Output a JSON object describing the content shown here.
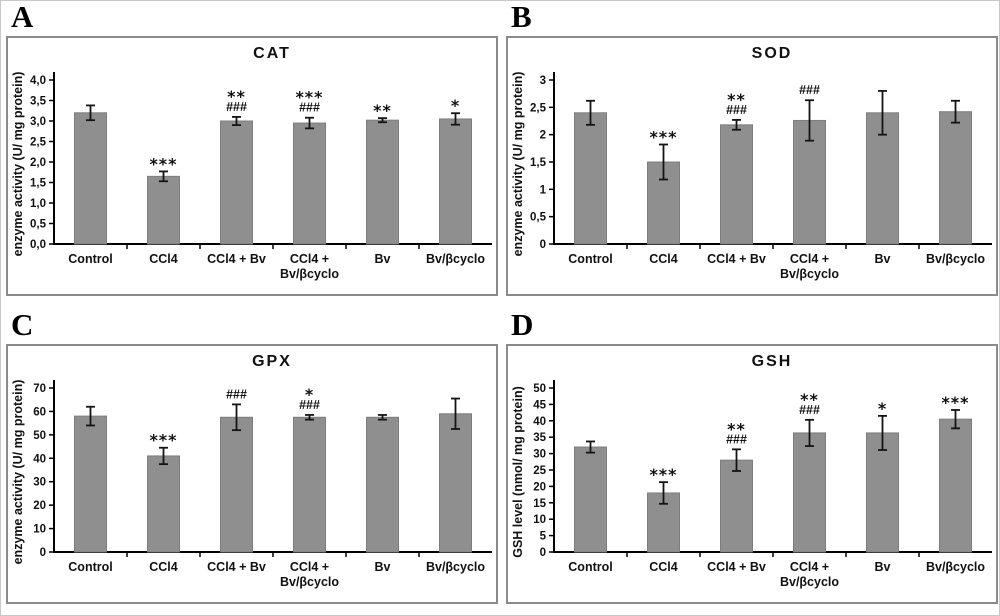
{
  "colors": {
    "bar": "#8f8f8f",
    "bar_edge": "#7d7d7d",
    "axis": "#000000",
    "error_bar": "#141414",
    "panel_border": "#8a8a8a"
  },
  "chart_data": [
    {
      "type": "bar",
      "panel_label": "A",
      "title": "CAT",
      "ylabel": "enzyme activity (U/ mg protein)",
      "xlabel": "",
      "ylim": [
        0,
        4
      ],
      "grid": false,
      "legend": false,
      "ytick_labels": [
        "0,0",
        "0,5",
        "1,0",
        "1,5",
        "2,0",
        "2,5",
        "3,0",
        "3,5",
        "4,0"
      ],
      "categories": [
        "Control",
        "CCl4",
        "CCl4 + Bv",
        "CCl4 +\nBv/βcyclo",
        "Bv",
        "Bv/βcyclo"
      ],
      "values": [
        3.2,
        1.65,
        3.0,
        2.95,
        3.02,
        3.05
      ],
      "errors": [
        0.18,
        0.12,
        0.1,
        0.13,
        0.05,
        0.14
      ],
      "sig_stars": [
        "",
        "***",
        "**",
        "***",
        "**",
        "*"
      ],
      "sig_hashes": [
        "",
        "",
        "###",
        "###",
        "",
        ""
      ]
    },
    {
      "type": "bar",
      "panel_label": "B",
      "title": "SOD",
      "ylabel": "enzyme activity (U/ mg protein)",
      "xlabel": "",
      "ylim": [
        0,
        3
      ],
      "grid": false,
      "legend": false,
      "ytick_labels": [
        "0",
        "0,5",
        "1",
        "1,5",
        "2",
        "2,5",
        "3"
      ],
      "categories": [
        "Control",
        "CCl4",
        "CCl4 + Bv",
        "CCl4 +\nBv/βcyclo",
        "Bv",
        "Bv/βcyclo"
      ],
      "values": [
        2.4,
        1.5,
        2.18,
        2.26,
        2.4,
        2.42
      ],
      "errors": [
        0.22,
        0.32,
        0.09,
        0.37,
        0.4,
        0.2
      ],
      "sig_stars": [
        "",
        "***",
        "**",
        "",
        "",
        ""
      ],
      "sig_hashes": [
        "",
        "",
        "###",
        "###",
        "",
        ""
      ]
    },
    {
      "type": "bar",
      "panel_label": "C",
      "title": "GPX",
      "ylabel": "enzyme activity (U/ mg protein)",
      "xlabel": "",
      "ylim": [
        0,
        70
      ],
      "grid": false,
      "legend": false,
      "ytick_labels": [
        "0",
        "10",
        "20",
        "30",
        "40",
        "50",
        "60",
        "70"
      ],
      "categories": [
        "Control",
        "CCl4",
        "CCl4 + Bv",
        "CCl4 +\nBv/βcyclo",
        "Bv",
        "Bv/βcyclo"
      ],
      "values": [
        58,
        41,
        57.5,
        57.5,
        57.5,
        59
      ],
      "errors": [
        4,
        3.5,
        5.5,
        1,
        1,
        6.5
      ],
      "sig_stars": [
        "",
        "***",
        "",
        "*",
        "",
        ""
      ],
      "sig_hashes": [
        "",
        "",
        "###",
        "###",
        "",
        ""
      ]
    },
    {
      "type": "bar",
      "panel_label": "D",
      "title": "GSH",
      "ylabel": "GSH level (nmol/ mg protein)",
      "xlabel": "",
      "ylim": [
        0,
        50
      ],
      "grid": false,
      "legend": false,
      "ytick_labels": [
        "0",
        "5",
        "10",
        "15",
        "20",
        "25",
        "30",
        "35",
        "40",
        "45",
        "50"
      ],
      "categories": [
        "Control",
        "CCl4",
        "CCl4 + Bv",
        "CCl4 +\nBv/βcyclo",
        "Bv",
        "Bv/βcyclo"
      ],
      "values": [
        32,
        18,
        28,
        36.3,
        36.3,
        40.5
      ],
      "errors": [
        1.7,
        3.3,
        3.3,
        4.0,
        5.2,
        2.8
      ],
      "sig_stars": [
        "",
        "***",
        "**",
        "**",
        "*",
        "***"
      ],
      "sig_hashes": [
        "",
        "",
        "###",
        "###",
        "",
        ""
      ]
    }
  ]
}
